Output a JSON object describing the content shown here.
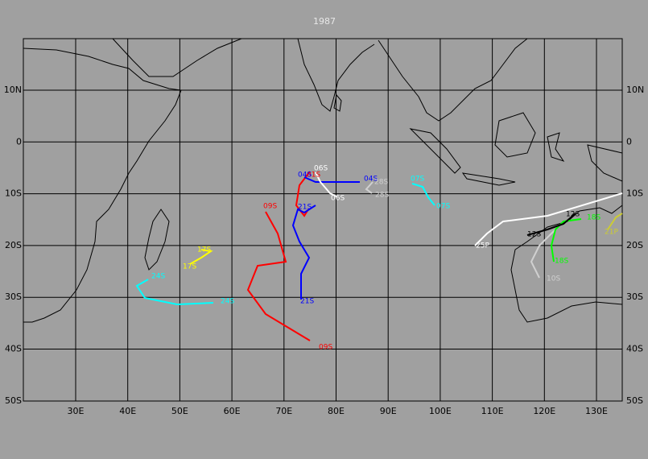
{
  "title": "1987",
  "longitude_labels": [
    "30E",
    "40E",
    "50E",
    "60E",
    "70E",
    "80E",
    "90E",
    "100E",
    "110E",
    "120E",
    "130E"
  ],
  "latitude_labels": [
    "10N",
    "0",
    "10S",
    "20S",
    "30S",
    "40S",
    "50S"
  ],
  "storms": [
    {
      "name": "09S",
      "color": "#ff0000"
    },
    {
      "name": "01S",
      "color": "#ff0000"
    },
    {
      "name": "21S",
      "color": "#0000ff"
    },
    {
      "name": "04S",
      "color": "#0000ff"
    },
    {
      "name": "06S",
      "color": "#ffffff"
    },
    {
      "name": "28S",
      "color": "#d0d0d0"
    },
    {
      "name": "07S",
      "color": "#00ffff"
    },
    {
      "name": "24S",
      "color": "#00ffff"
    },
    {
      "name": "17S",
      "color": "#ffff00"
    },
    {
      "name": "25P",
      "color": "#ffffff"
    },
    {
      "name": "10S",
      "color": "#d0d0d0"
    },
    {
      "name": "18S",
      "color": "#00ff00"
    },
    {
      "name": "12S",
      "color": "#000000"
    },
    {
      "name": "21P",
      "color": "#cccc33"
    }
  ]
}
